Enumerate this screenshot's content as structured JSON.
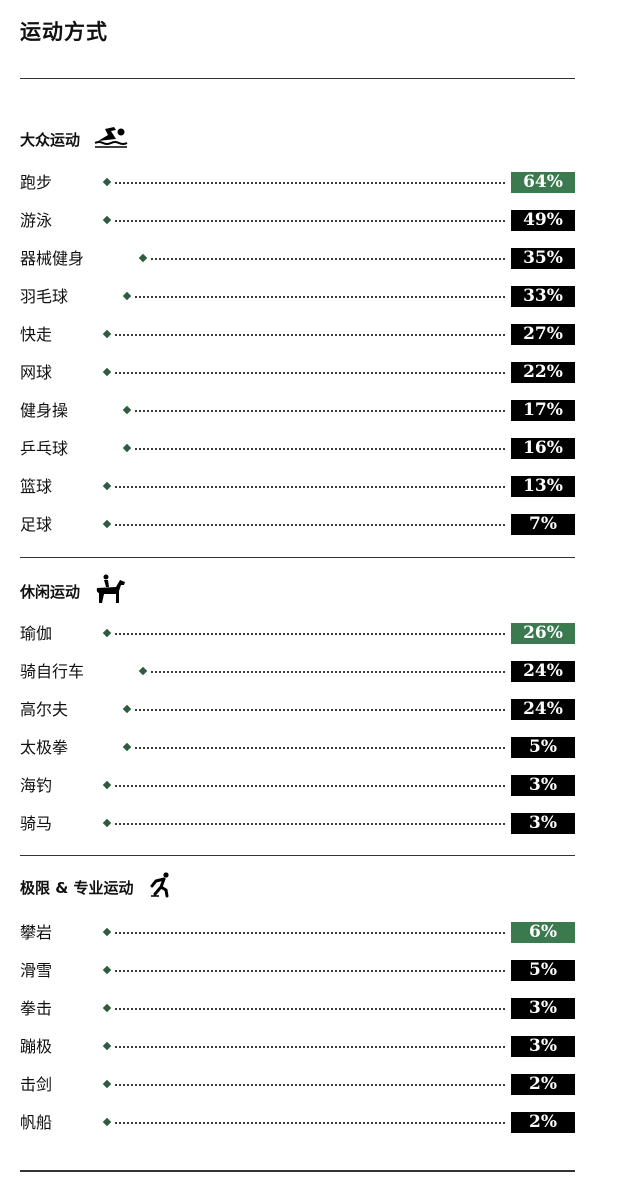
{
  "title": "运动方式",
  "colors": {
    "highlight": "#3a7a4e",
    "default": "#000000",
    "diamond": "#2f5c40"
  },
  "chart_data": {
    "type": "table",
    "title": "运动方式",
    "sections": [
      {
        "name": "大众运动",
        "icon": "swimmer-icon",
        "items": [
          {
            "label": "跑步",
            "value": "64%"
          },
          {
            "label": "游泳",
            "value": "49%"
          },
          {
            "label": "器械健身",
            "value": "35%"
          },
          {
            "label": "羽毛球",
            "value": "33%"
          },
          {
            "label": "快走",
            "value": "27%"
          },
          {
            "label": "网球",
            "value": "22%"
          },
          {
            "label": "健身操",
            "value": "17%"
          },
          {
            "label": "乒乓球",
            "value": "16%"
          },
          {
            "label": "篮球",
            "value": "13%"
          },
          {
            "label": "足球",
            "value": "7%"
          }
        ]
      },
      {
        "name": "休闲运动",
        "icon": "horse-rider-icon",
        "items": [
          {
            "label": "瑜伽",
            "value": "26%"
          },
          {
            "label": "骑自行车",
            "value": "24%"
          },
          {
            "label": "高尔夫",
            "value": "24%"
          },
          {
            "label": "太极拳",
            "value": "5%"
          },
          {
            "label": "海钓",
            "value": "3%"
          },
          {
            "label": "骑马",
            "value": "3%"
          }
        ]
      },
      {
        "name": "极限 & 专业运动",
        "icon": "skater-icon",
        "items": [
          {
            "label": "攀岩",
            "value": "6%"
          },
          {
            "label": "滑雪",
            "value": "5%"
          },
          {
            "label": "拳击",
            "value": "3%"
          },
          {
            "label": "蹦极",
            "value": "3%"
          },
          {
            "label": "击剑",
            "value": "2%"
          },
          {
            "label": "帆船",
            "value": "2%"
          }
        ]
      }
    ]
  }
}
